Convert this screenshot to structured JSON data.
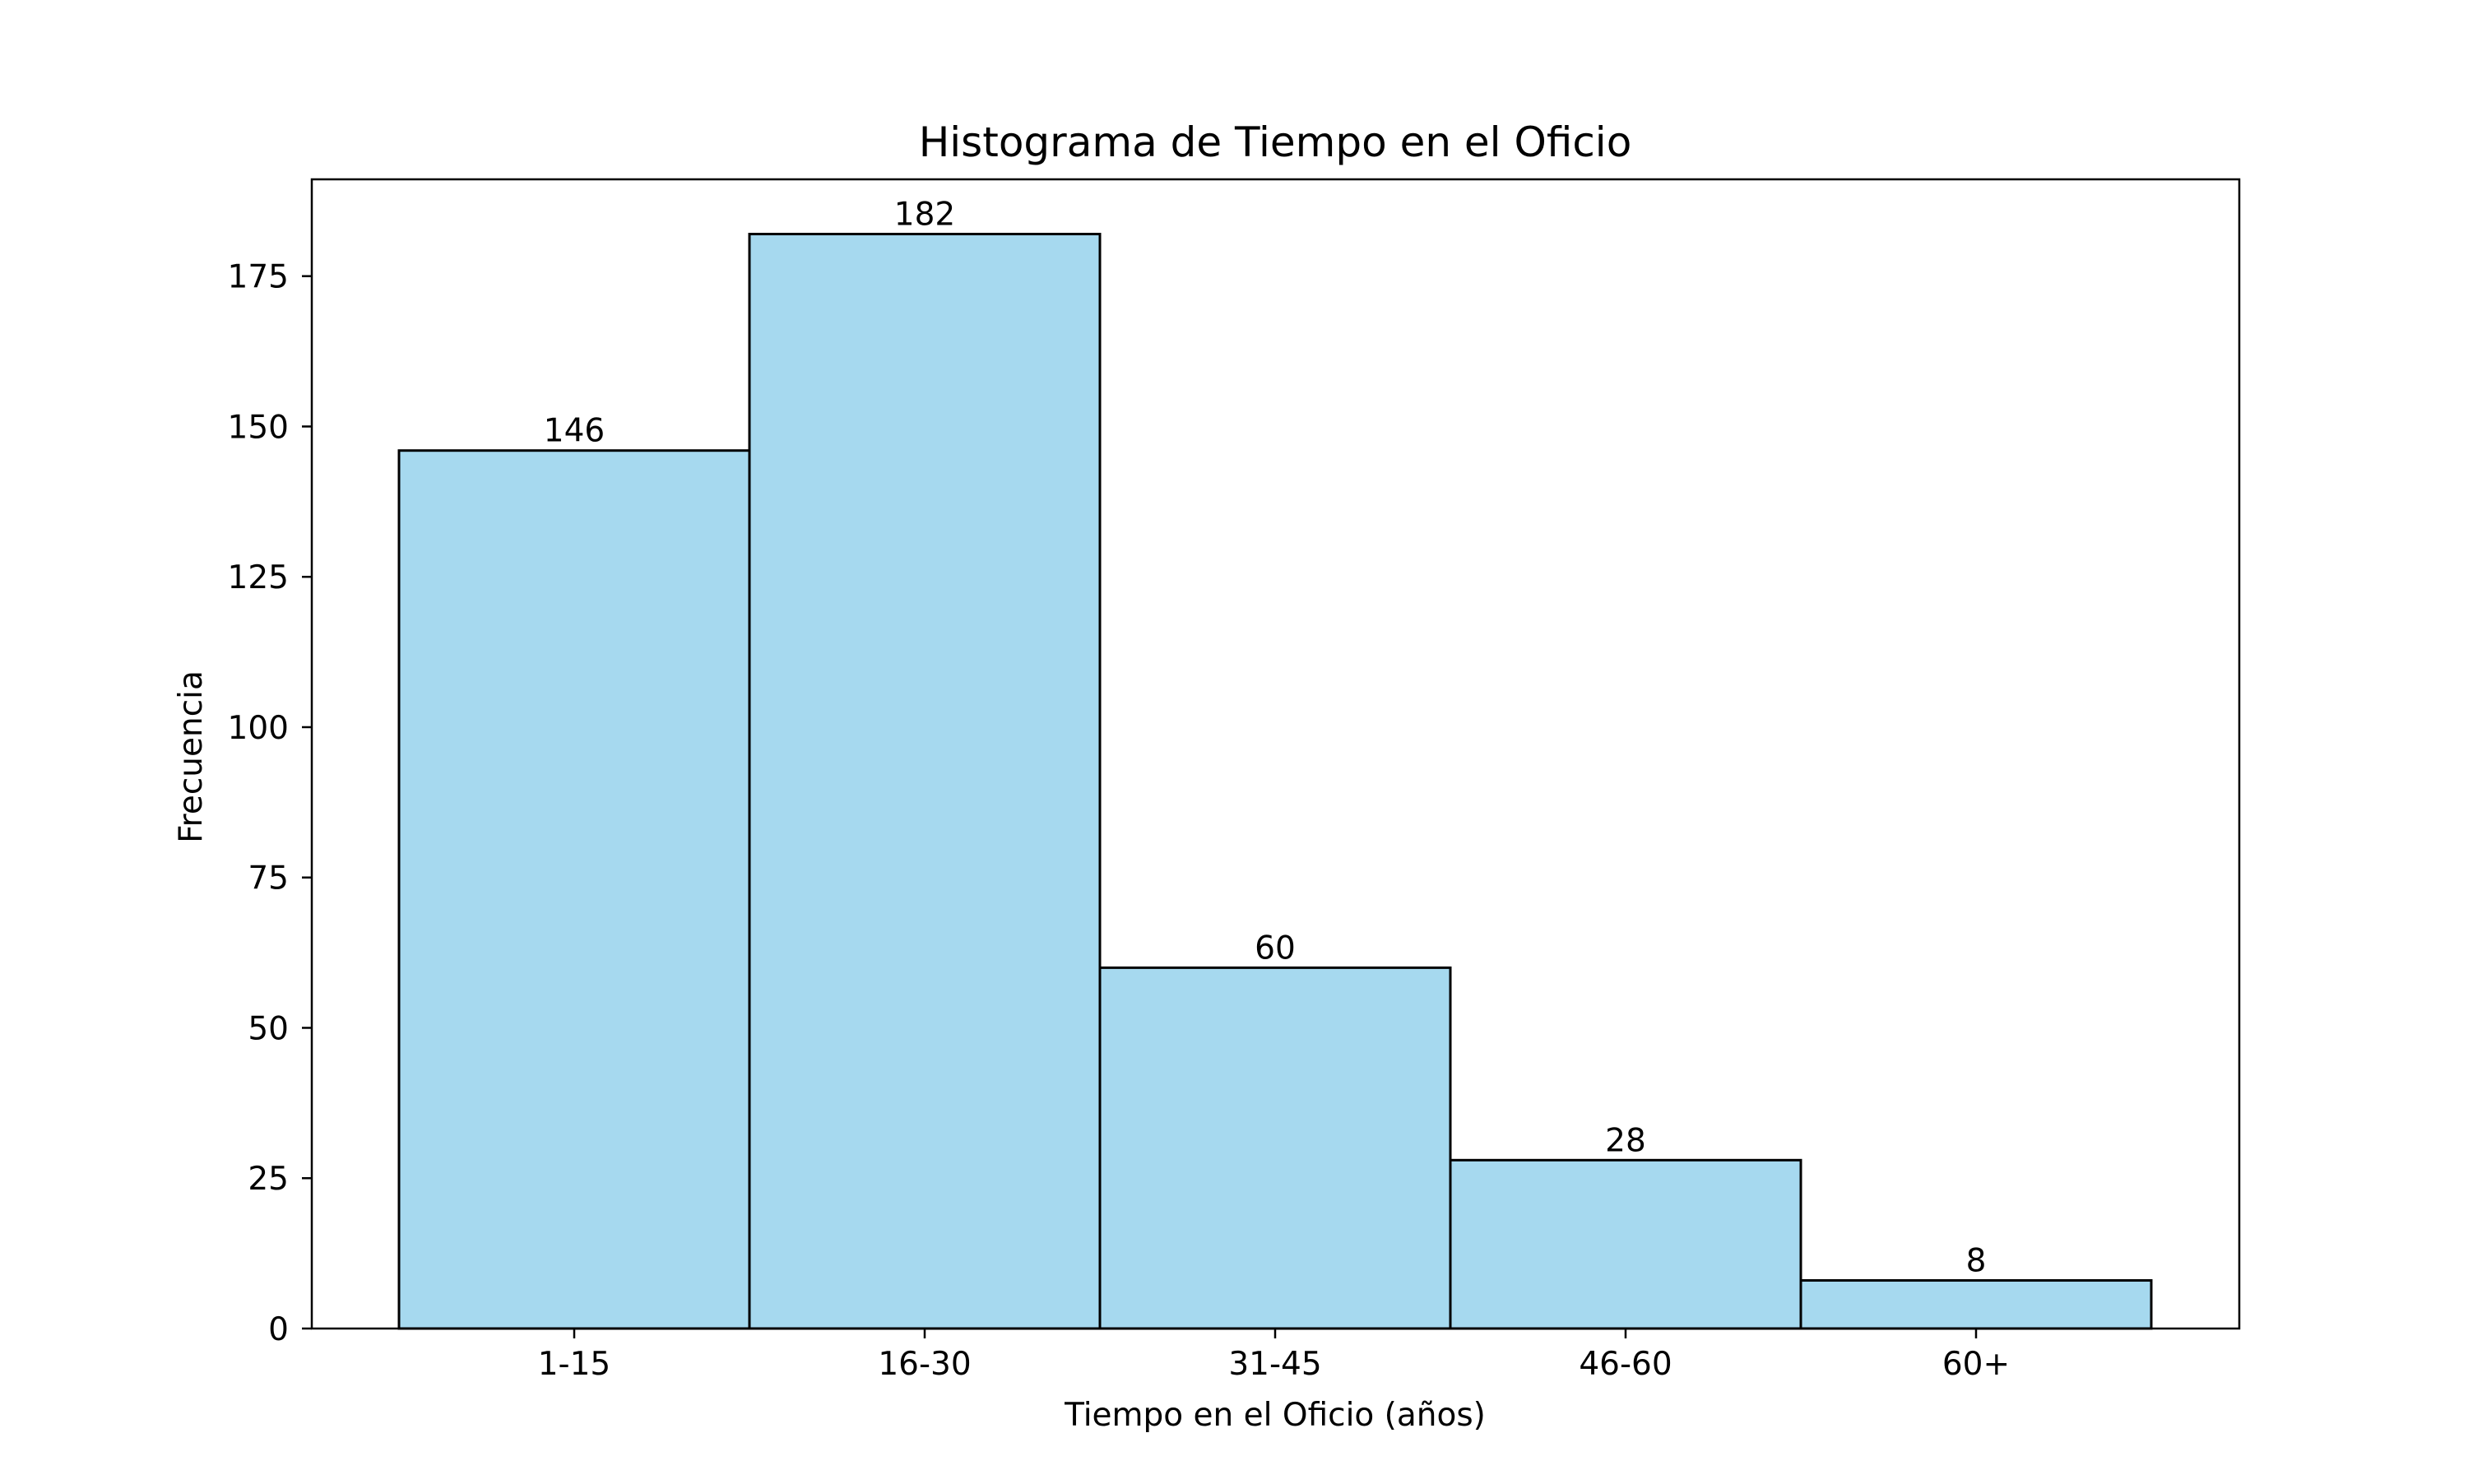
{
  "chart_data": {
    "type": "bar",
    "title": "Histograma de Tiempo en el Oficio",
    "xlabel": "Tiempo en el Oficio (años)",
    "ylabel": "Frecuencia",
    "categories": [
      "1-15",
      "16-30",
      "31-45",
      "46-60",
      "60+"
    ],
    "values": [
      146,
      182,
      60,
      28,
      8
    ],
    "data_labels": [
      "146",
      "182",
      "60",
      "28",
      "8"
    ],
    "yticks": [
      0,
      25,
      50,
      75,
      100,
      125,
      150,
      175
    ],
    "ytick_labels": [
      "0",
      "25",
      "50",
      "75",
      "100",
      "125",
      "150",
      "175"
    ],
    "ylim": [
      0,
      191.1
    ],
    "grid": false,
    "bar_color": "#a6d9ef",
    "edge_color": "#000000"
  }
}
